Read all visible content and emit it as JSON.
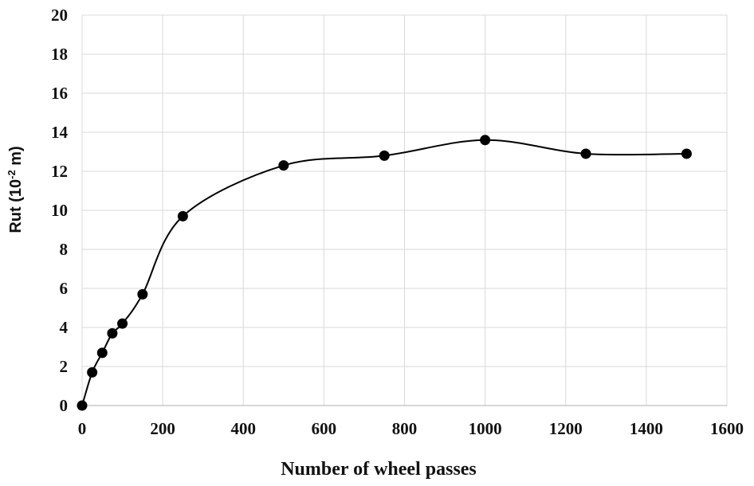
{
  "chart_data": {
    "type": "line",
    "title": "",
    "xlabel": "Number of wheel passes",
    "ylabel_text": "Rut (10",
    "ylabel_exp": "-2",
    "ylabel_unit": " m)",
    "xlim": [
      0,
      1600
    ],
    "ylim": [
      0,
      20
    ],
    "x_ticks": [
      "0",
      "200",
      "400",
      "600",
      "800",
      "1000",
      "1200",
      "1400",
      "1600"
    ],
    "y_ticks": [
      "0",
      "2",
      "4",
      "6",
      "8",
      "10",
      "12",
      "14",
      "16",
      "18",
      "20"
    ],
    "grid": true,
    "smooth": true,
    "series": [
      {
        "color": "#000000",
        "x": [
          0,
          25,
          50,
          75,
          100,
          150,
          250,
          500,
          750,
          1000,
          1250,
          1500
        ],
        "y": [
          0,
          1.7,
          2.7,
          3.7,
          4.2,
          5.7,
          9.7,
          12.3,
          12.8,
          13.6,
          12.9,
          12.9
        ]
      }
    ]
  }
}
